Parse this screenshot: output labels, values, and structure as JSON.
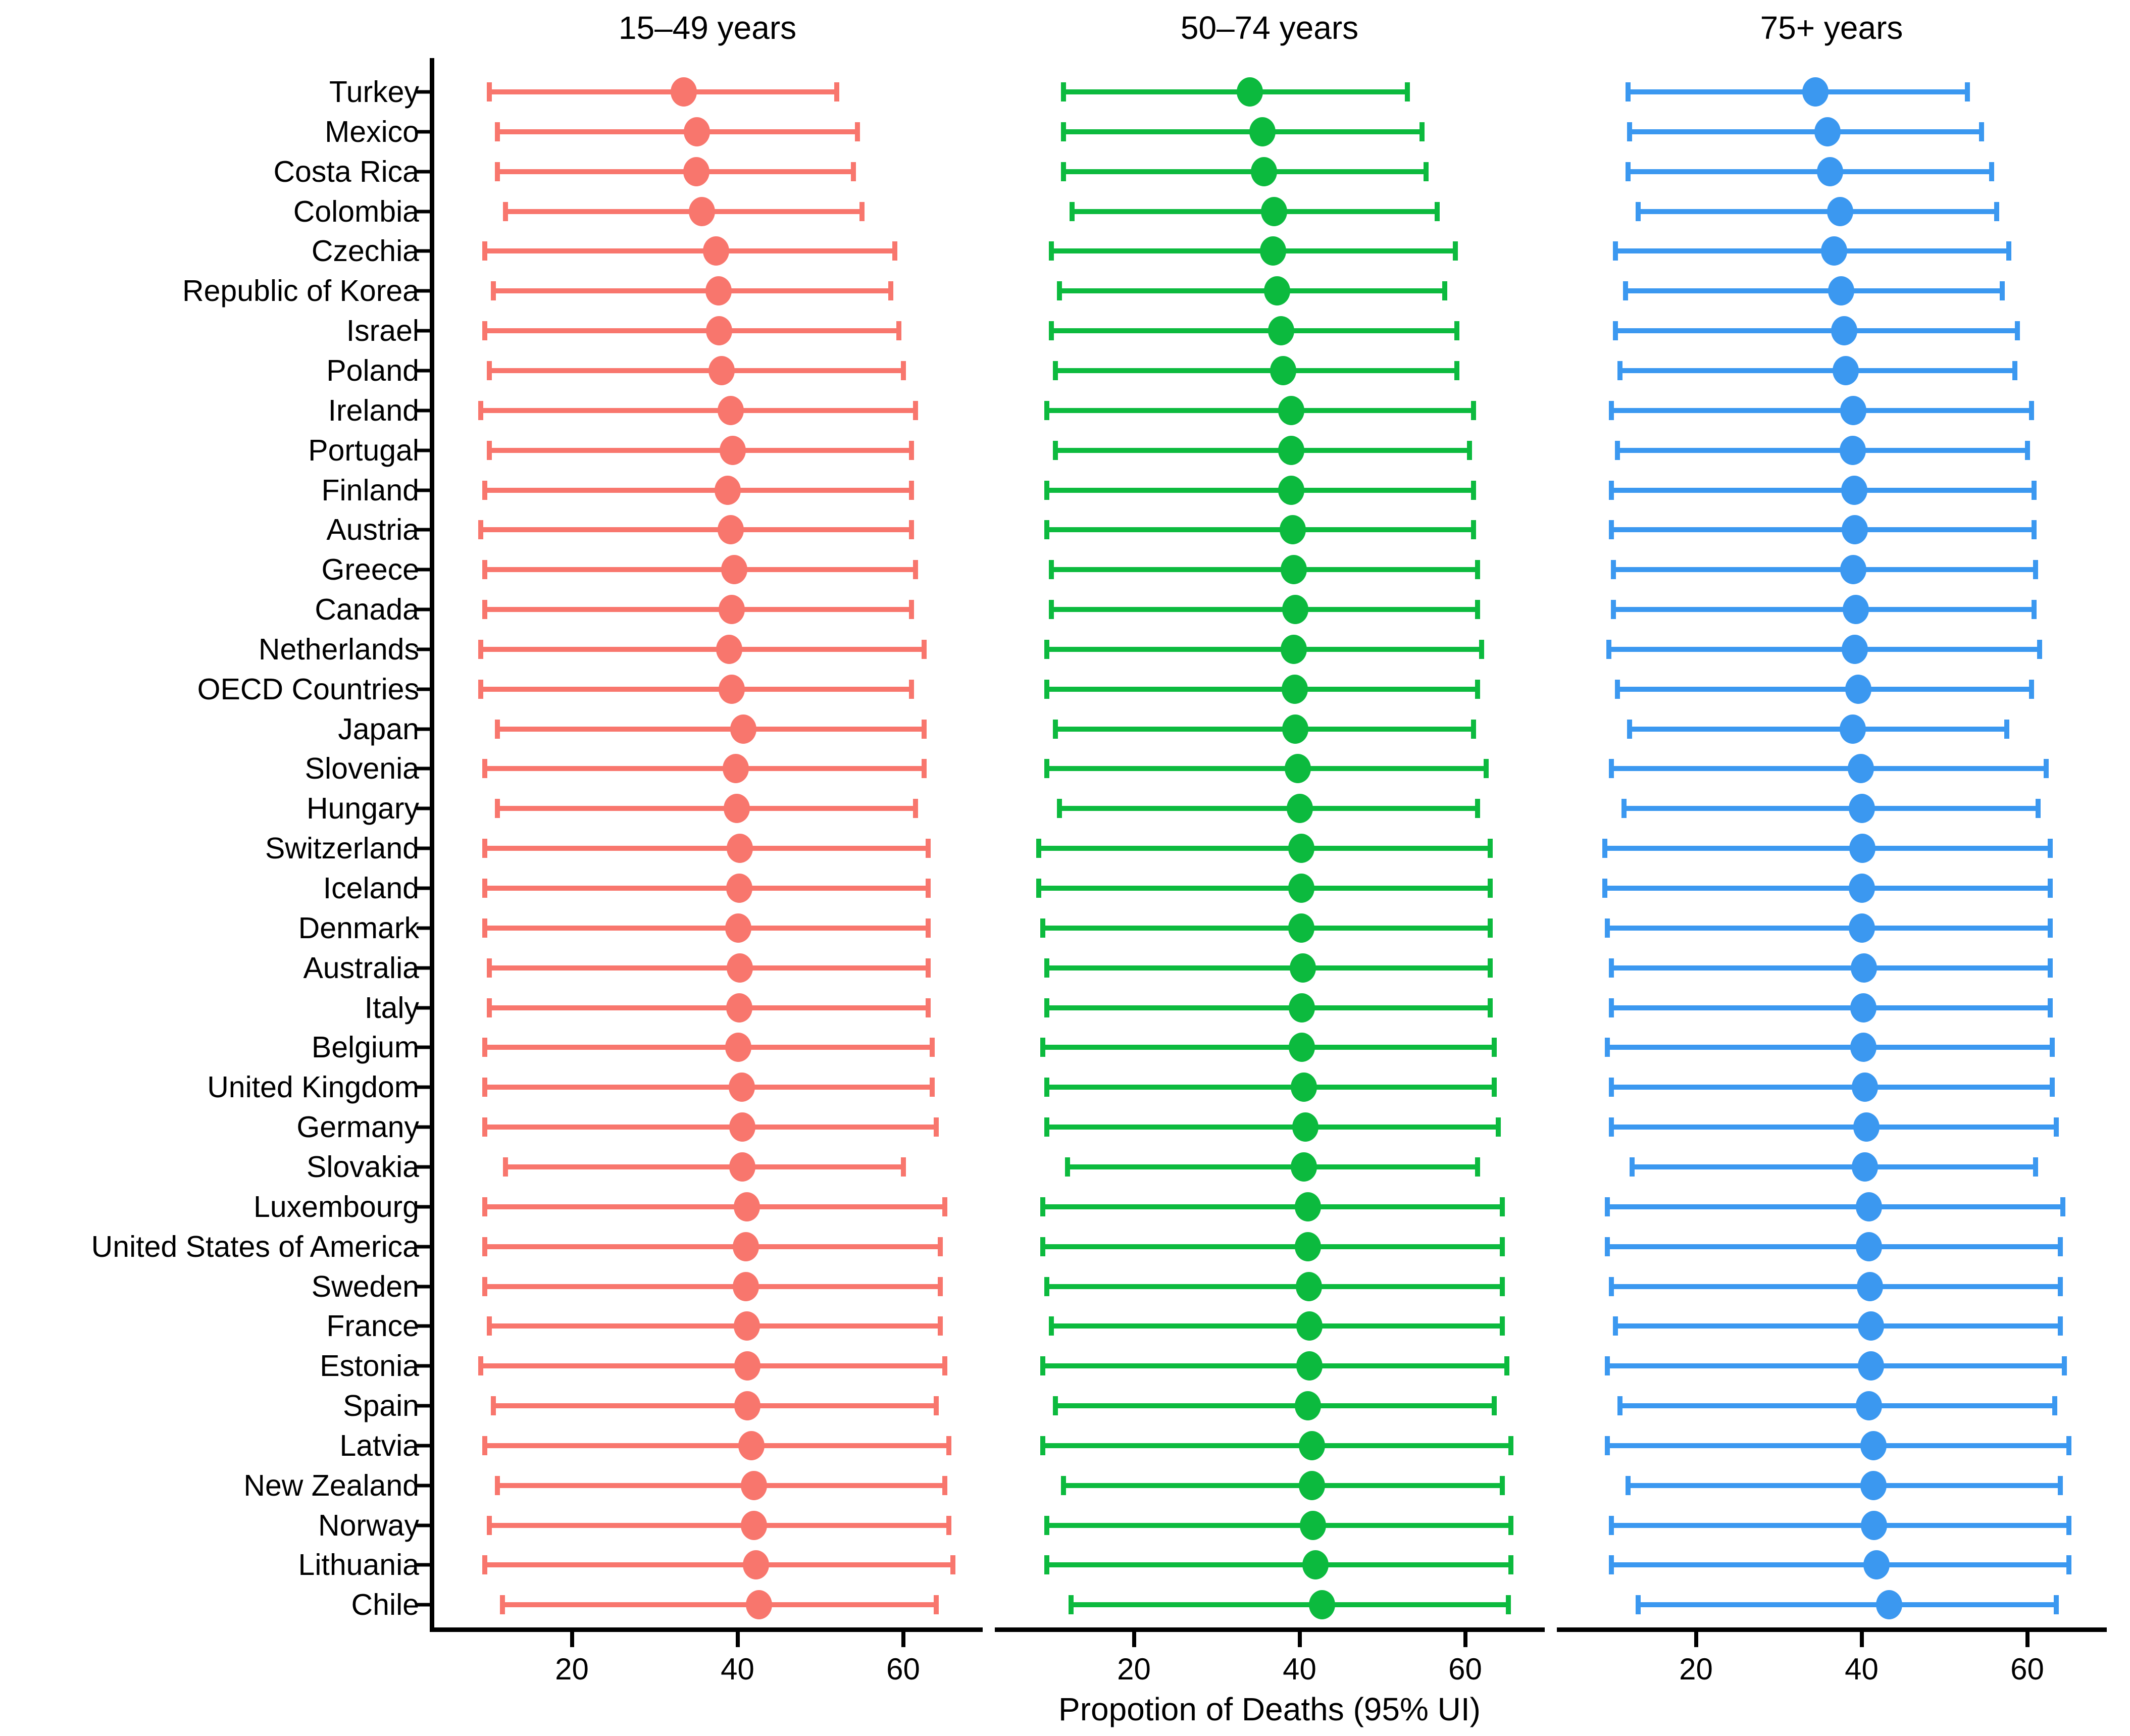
{
  "figure": {
    "x_axis_label": "Propotion of Deaths (95% UI)",
    "x_ticks": [
      20,
      40,
      60
    ],
    "series_colors": [
      "#F8766D",
      "#0CBA3E",
      "#3B98F0"
    ],
    "axis_color": "#000000",
    "background_color": "#FFFFFF"
  },
  "chart_data": {
    "type": "scatter",
    "subtype": "dot-whisker-forest",
    "xlabel": "Propotion of Deaths (95% UI)",
    "x_ticks": [
      20,
      40,
      60
    ],
    "xlim": [
      3.2,
      69.6
    ],
    "grid": false,
    "legend_position": "none",
    "categories": [
      "Turkey",
      "Mexico",
      "Costa Rica",
      "Colombia",
      "Czechia",
      "Republic of Korea",
      "Israel",
      "Poland",
      "Ireland",
      "Portugal",
      "Finland",
      "Austria",
      "Greece",
      "Canada",
      "Netherlands",
      "OECD Countries",
      "Japan",
      "Slovenia",
      "Hungary",
      "Switzerland",
      "Iceland",
      "Denmark",
      "Australia",
      "Italy",
      "Belgium",
      "United Kingdom",
      "Germany",
      "Slovakia",
      "Luxembourg",
      "United States of America",
      "Sweden",
      "France",
      "Estonia",
      "Spain",
      "Latvia",
      "New Zealand",
      "Norway",
      "Lithuania",
      "Chile"
    ],
    "series": [
      {
        "name": "15–49 years",
        "color": "#F8766D",
        "values": [
          33.5,
          35.1,
          35.0,
          35.7,
          37.4,
          37.7,
          37.8,
          38.1,
          39.2,
          39.4,
          38.8,
          39.2,
          39.6,
          39.3,
          39.0,
          39.3,
          40.7,
          39.8,
          39.9,
          40.3,
          40.2,
          40.1,
          40.3,
          40.2,
          40.1,
          40.5,
          40.6,
          40.6,
          41.1,
          41.0,
          41.0,
          41.1,
          41.2,
          41.2,
          41.7,
          42.0,
          42.0,
          42.2,
          42.6
        ],
        "lower": [
          10.0,
          11.0,
          11.0,
          12.0,
          9.5,
          10.5,
          9.5,
          10.0,
          9.0,
          10.0,
          9.5,
          9.0,
          9.5,
          9.5,
          9.0,
          9.0,
          11.0,
          9.5,
          11.0,
          9.5,
          9.5,
          9.5,
          10.0,
          10.0,
          9.5,
          9.5,
          9.5,
          12.0,
          9.5,
          9.5,
          9.5,
          10.0,
          9.0,
          10.5,
          9.5,
          11.0,
          10.0,
          9.5,
          11.6
        ],
        "upper": [
          52.0,
          54.5,
          54.0,
          55.0,
          59.0,
          58.5,
          59.5,
          60.0,
          61.5,
          61.0,
          61.0,
          61.0,
          61.5,
          61.0,
          62.5,
          61.0,
          62.5,
          62.5,
          61.5,
          63.0,
          63.0,
          63.0,
          63.0,
          63.0,
          63.5,
          63.5,
          64.0,
          60.0,
          65.0,
          64.5,
          64.5,
          64.5,
          65.0,
          64.0,
          65.5,
          65.0,
          65.5,
          66.0,
          64.0
        ]
      },
      {
        "name": "50–74 years",
        "color": "#0CBA3E",
        "values": [
          34.0,
          35.5,
          35.7,
          36.9,
          36.8,
          37.3,
          37.8,
          38.0,
          39.0,
          39.0,
          39.0,
          39.2,
          39.3,
          39.5,
          39.3,
          39.4,
          39.5,
          39.8,
          40.0,
          40.2,
          40.2,
          40.2,
          40.4,
          40.3,
          40.3,
          40.5,
          40.7,
          40.5,
          41.0,
          41.0,
          41.1,
          41.2,
          41.2,
          41.0,
          41.5,
          41.5,
          41.6,
          41.9,
          42.7
        ],
        "lower": [
          11.5,
          11.5,
          11.5,
          12.5,
          10.0,
          11.0,
          10.0,
          10.5,
          9.5,
          10.5,
          9.5,
          9.5,
          10.0,
          10.0,
          9.5,
          9.5,
          10.5,
          9.5,
          11.0,
          8.5,
          8.5,
          9.0,
          9.5,
          9.5,
          9.0,
          9.5,
          9.5,
          12.0,
          9.0,
          9.0,
          9.5,
          10.0,
          9.0,
          10.5,
          9.0,
          11.5,
          9.5,
          9.5,
          12.4
        ],
        "upper": [
          53.0,
          54.8,
          55.3,
          56.6,
          58.8,
          57.5,
          59.0,
          59.0,
          61.0,
          60.5,
          61.0,
          61.0,
          61.5,
          61.5,
          62.0,
          61.5,
          61.0,
          62.5,
          61.5,
          63.0,
          63.0,
          63.0,
          63.0,
          63.0,
          63.5,
          63.5,
          64.0,
          61.5,
          64.5,
          64.5,
          64.5,
          64.5,
          65.0,
          63.5,
          65.5,
          64.5,
          65.5,
          65.5,
          65.2
        ]
      },
      {
        "name": "75+ years",
        "color": "#3B98F0",
        "values": [
          34.4,
          35.9,
          36.2,
          37.4,
          36.7,
          37.5,
          37.9,
          38.1,
          39.0,
          38.9,
          39.1,
          39.2,
          39.0,
          39.3,
          39.2,
          39.6,
          38.9,
          39.9,
          40.0,
          40.1,
          40.0,
          40.0,
          40.3,
          40.2,
          40.2,
          40.4,
          40.6,
          40.4,
          40.9,
          40.9,
          41.0,
          41.1,
          41.1,
          40.9,
          41.4,
          41.4,
          41.5,
          41.8,
          43.3
        ],
        "lower": [
          11.8,
          12.0,
          11.8,
          13.0,
          10.3,
          11.5,
          10.3,
          10.8,
          9.8,
          10.5,
          9.8,
          9.8,
          10.0,
          10.0,
          9.5,
          10.5,
          12.0,
          9.8,
          11.3,
          9.0,
          9.0,
          9.3,
          9.8,
          9.8,
          9.3,
          9.8,
          9.8,
          12.3,
          9.3,
          9.3,
          9.8,
          10.3,
          9.3,
          10.8,
          9.3,
          11.8,
          9.8,
          9.8,
          13.0
        ],
        "upper": [
          52.8,
          54.5,
          55.7,
          56.3,
          57.8,
          57.0,
          58.8,
          58.5,
          60.5,
          60.0,
          60.8,
          60.8,
          61.0,
          60.8,
          61.5,
          60.5,
          57.5,
          62.3,
          61.3,
          62.8,
          62.8,
          62.8,
          62.8,
          62.8,
          63.0,
          63.0,
          63.5,
          61.0,
          64.3,
          64.0,
          64.0,
          64.0,
          64.5,
          63.3,
          65.0,
          64.0,
          65.0,
          65.0,
          63.5
        ]
      }
    ]
  }
}
